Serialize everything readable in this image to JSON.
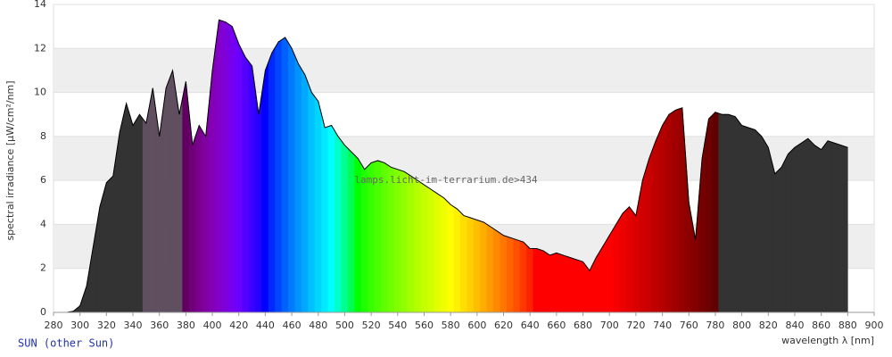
{
  "chart_data": {
    "type": "spectrum",
    "title": "SUN (other Sun)",
    "xlabel": "wavelength λ [nm]",
    "ylabel": "spectral irradiance [µW/cm²/nm]",
    "annotation": "lamps.licht-im-terrarium.de>434",
    "xlim": [
      280,
      900
    ],
    "xticks": [
      280,
      300,
      320,
      340,
      360,
      380,
      400,
      420,
      440,
      460,
      480,
      500,
      520,
      540,
      560,
      580,
      600,
      620,
      640,
      660,
      680,
      700,
      720,
      740,
      760,
      780,
      800,
      820,
      840,
      860,
      880,
      900
    ],
    "ylim": [
      0,
      14
    ],
    "yticks": [
      0,
      2,
      4,
      6,
      8,
      10,
      12,
      14
    ],
    "grid": true,
    "x": [
      290,
      295,
      300,
      305,
      310,
      315,
      320,
      325,
      330,
      335,
      340,
      345,
      350,
      355,
      360,
      365,
      370,
      375,
      380,
      385,
      390,
      395,
      400,
      405,
      410,
      415,
      420,
      425,
      430,
      435,
      440,
      445,
      450,
      455,
      460,
      465,
      470,
      475,
      480,
      485,
      490,
      495,
      500,
      505,
      510,
      515,
      520,
      525,
      530,
      535,
      540,
      545,
      550,
      555,
      560,
      565,
      570,
      575,
      580,
      585,
      590,
      595,
      600,
      605,
      610,
      615,
      620,
      625,
      630,
      635,
      640,
      645,
      650,
      655,
      660,
      665,
      670,
      675,
      680,
      685,
      690,
      695,
      700,
      705,
      710,
      715,
      720,
      725,
      730,
      735,
      740,
      745,
      750,
      755,
      760,
      765,
      770,
      775,
      780,
      785,
      790,
      795,
      800,
      805,
      810,
      815,
      820,
      825,
      830,
      835,
      840,
      845,
      850,
      855,
      860,
      865,
      870,
      875,
      880
    ],
    "values": [
      0,
      0.05,
      0.3,
      1.2,
      3,
      4.8,
      5.9,
      6.2,
      8.2,
      9.5,
      8.5,
      9.0,
      8.6,
      10.2,
      8.0,
      10.2,
      11.0,
      9.0,
      10.5,
      7.6,
      8.5,
      8.0,
      11.0,
      13.3,
      13.2,
      13.0,
      12.2,
      11.6,
      11.2,
      9.0,
      11.0,
      11.8,
      12.3,
      12.5,
      12.0,
      11.3,
      10.8,
      10.0,
      9.6,
      8.4,
      8.5,
      8.0,
      7.6,
      7.3,
      7.0,
      6.5,
      6.8,
      6.9,
      6.8,
      6.6,
      6.5,
      6.4,
      6.2,
      6.0,
      5.8,
      5.6,
      5.4,
      5.2,
      4.9,
      4.7,
      4.4,
      4.3,
      4.2,
      4.1,
      3.9,
      3.7,
      3.5,
      3.4,
      3.3,
      3.2,
      2.9,
      2.9,
      2.8,
      2.6,
      2.7,
      2.6,
      2.5,
      2.4,
      2.3,
      1.9,
      2.5,
      3.0,
      3.5,
      4.0,
      4.5,
      4.8,
      4.4,
      6.0,
      7.0,
      7.8,
      8.5,
      9.0,
      9.2,
      9.3,
      5.0,
      3.3,
      7.0,
      8.8,
      9.1,
      9.0,
      9.0,
      8.9,
      8.5,
      8.4,
      8.3,
      8.0,
      7.5,
      6.3,
      6.6,
      7.2,
      7.5,
      7.7,
      7.9,
      7.6,
      7.4,
      7.8,
      7.7,
      7.6,
      7.5
    ]
  }
}
